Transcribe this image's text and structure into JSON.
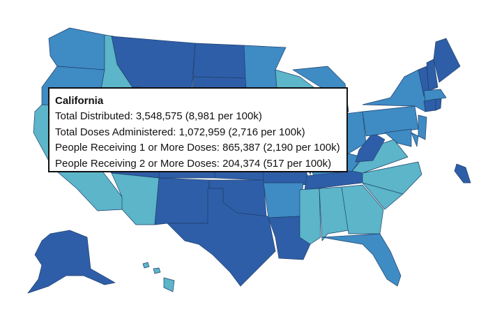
{
  "map": {
    "legend_colors": {
      "dark": "#2f5ea8",
      "medium": "#3f8bc4",
      "light": "#5cb5c9"
    }
  },
  "tooltip": {
    "state": "California",
    "rows": [
      {
        "label": "Total Distributed: ",
        "value": "3,548,575",
        "per_100k": "(8,981 per 100k)"
      },
      {
        "label": "Total Doses Administered: ",
        "value": "1,072,959",
        "per_100k": "(2,716 per 100k)"
      },
      {
        "label": "People Receiving 1 or More Doses: ",
        "value": "865,387",
        "per_100k": "(2,190 per 100k)"
      },
      {
        "label": "People Receiving 2 or More Doses: ",
        "value": "204,374",
        "per_100k": "(517 per 100k)"
      }
    ]
  }
}
